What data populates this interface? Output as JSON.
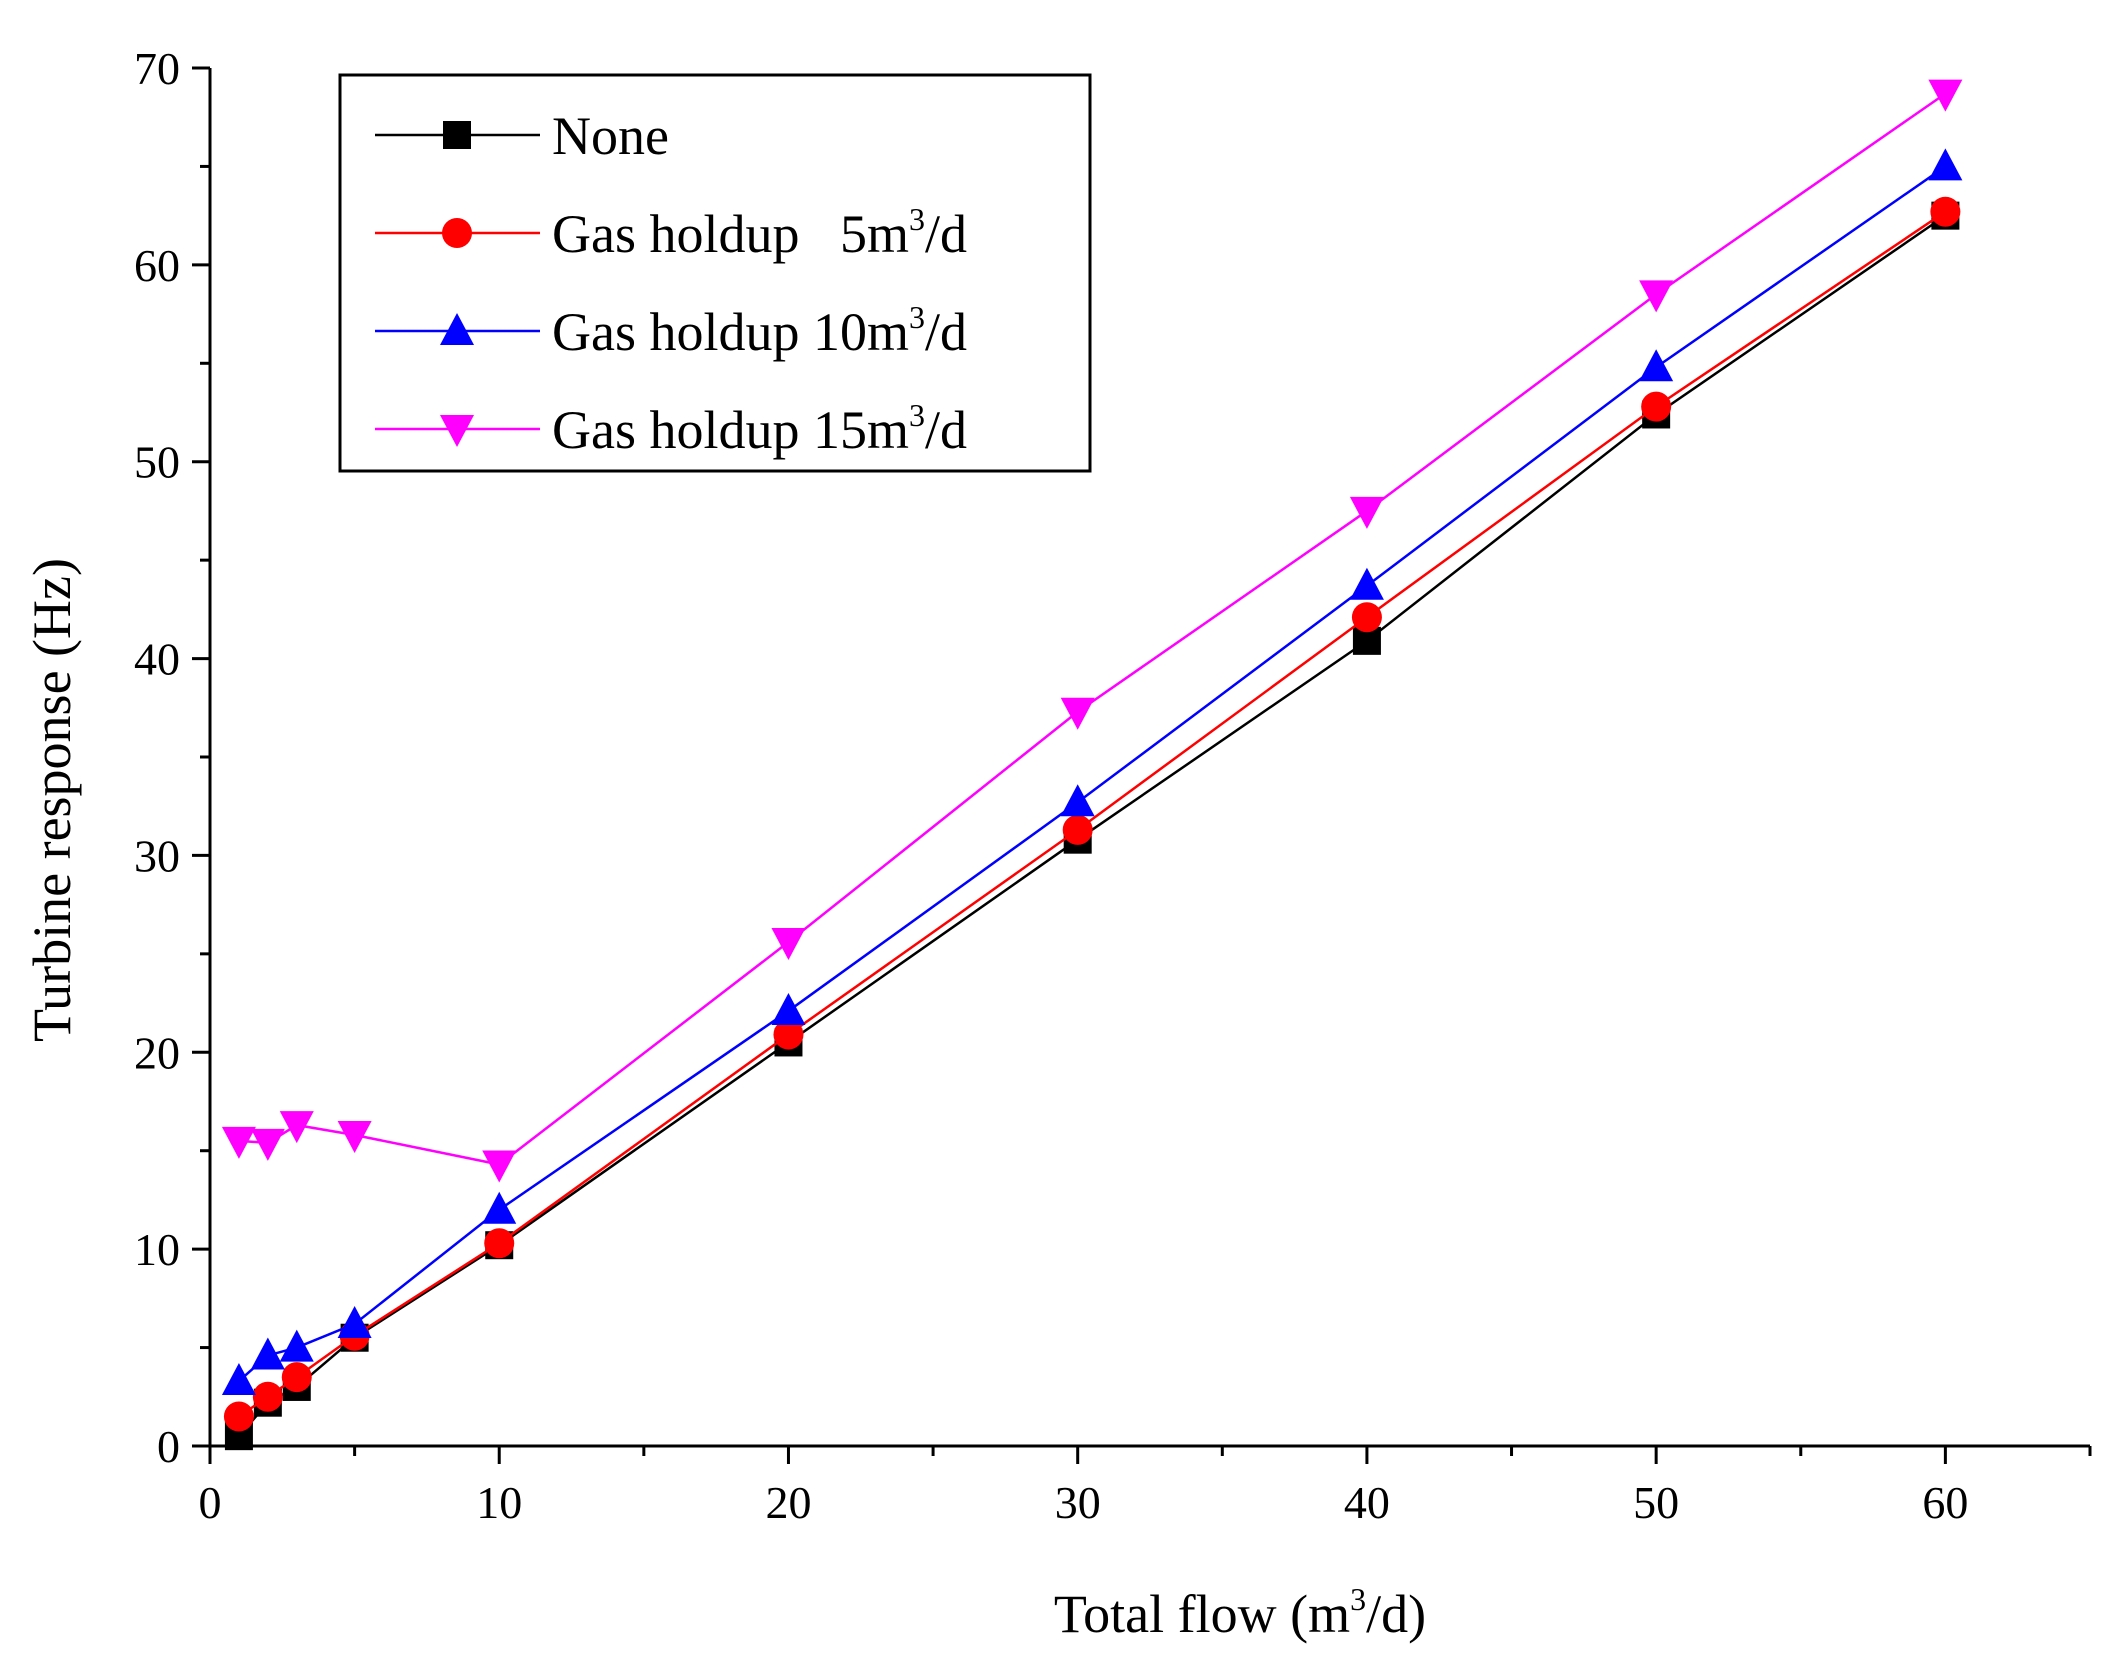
{
  "chart_data": {
    "type": "line",
    "title": "",
    "xlabel": "Total flow (m",
    "xlabel_sup": "3",
    "xlabel_tail": "/d)",
    "ylabel": "Turbine response (Hz)",
    "xlim": [
      0,
      65
    ],
    "ylim": [
      0,
      70
    ],
    "xticks": [
      0,
      10,
      20,
      30,
      40,
      50,
      60
    ],
    "yticks": [
      0,
      10,
      20,
      30,
      40,
      50,
      60,
      70
    ],
    "x": [
      1,
      2,
      3,
      5,
      10,
      20,
      30,
      40,
      50,
      60
    ],
    "legend_position": "top-left",
    "series": [
      {
        "name": "None",
        "legend_text": "None",
        "legend_sup": "",
        "legend_tail": "",
        "color": "#000000",
        "marker": "square",
        "values": [
          0.5,
          2.2,
          3.0,
          5.5,
          10.2,
          20.5,
          30.8,
          40.9,
          52.4,
          62.5
        ]
      },
      {
        "name": "Gas holdup 5m3/d",
        "legend_text": "Gas holdup   5m",
        "legend_sup": "3",
        "legend_tail": "/d",
        "color": "#ff0000",
        "marker": "circle",
        "values": [
          1.5,
          2.5,
          3.5,
          5.6,
          10.3,
          20.9,
          31.3,
          42.1,
          52.8,
          62.7
        ]
      },
      {
        "name": "Gas holdup 10m3/d",
        "legend_text": "Gas holdup 10m",
        "legend_sup": "3",
        "legend_tail": "/d",
        "color": "#0000ff",
        "marker": "triangle-up",
        "values": [
          3.3,
          4.6,
          5.0,
          6.2,
          12.0,
          22.1,
          32.7,
          43.7,
          54.8,
          65.0
        ]
      },
      {
        "name": "Gas holdup 15m3/d",
        "legend_text": "Gas holdup 15m",
        "legend_sup": "3",
        "legend_tail": "/d",
        "color": "#ff00ff",
        "marker": "triangle-down",
        "values": [
          15.5,
          15.4,
          16.3,
          15.8,
          14.3,
          25.6,
          37.3,
          47.5,
          58.5,
          68.7
        ]
      }
    ]
  }
}
